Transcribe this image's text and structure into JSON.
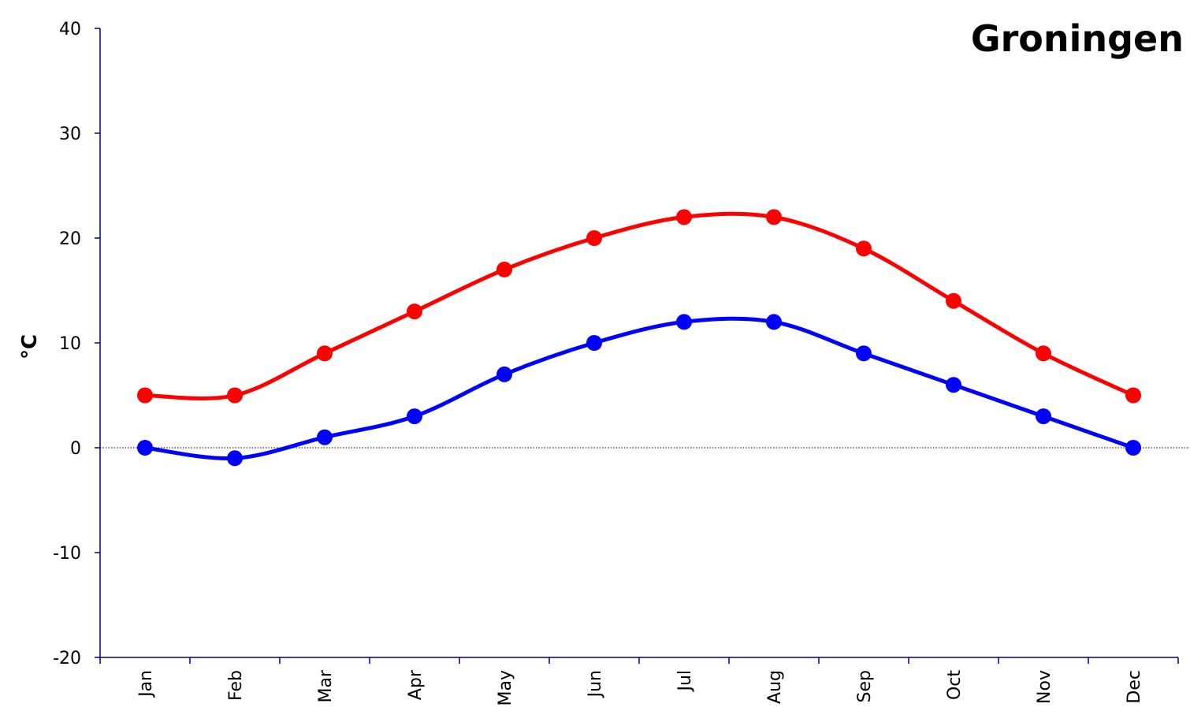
{
  "chart_data": {
    "type": "line",
    "title": "Groningen",
    "xlabel": "",
    "ylabel": "°C",
    "categories": [
      "Jan",
      "Feb",
      "Mar",
      "Apr",
      "May",
      "Jun",
      "Jul",
      "Aug",
      "Sep",
      "Oct",
      "Nov",
      "Dec"
    ],
    "ylim": [
      -20,
      40
    ],
    "yticks": [
      "-20",
      "-10",
      "0",
      "10",
      "20",
      "30",
      "40"
    ],
    "reference_line": 0,
    "grid": false,
    "legend": "none",
    "smooth": true,
    "series": [
      {
        "color": "#ff0000",
        "values": [
          5,
          5,
          9,
          13,
          17,
          20,
          22,
          22,
          19,
          14,
          9,
          5
        ]
      },
      {
        "color": "#0000ff",
        "values": [
          0,
          -1,
          1,
          3,
          7,
          10,
          12,
          12,
          9,
          6,
          3,
          0
        ]
      }
    ],
    "axis_color": "#00008b"
  }
}
